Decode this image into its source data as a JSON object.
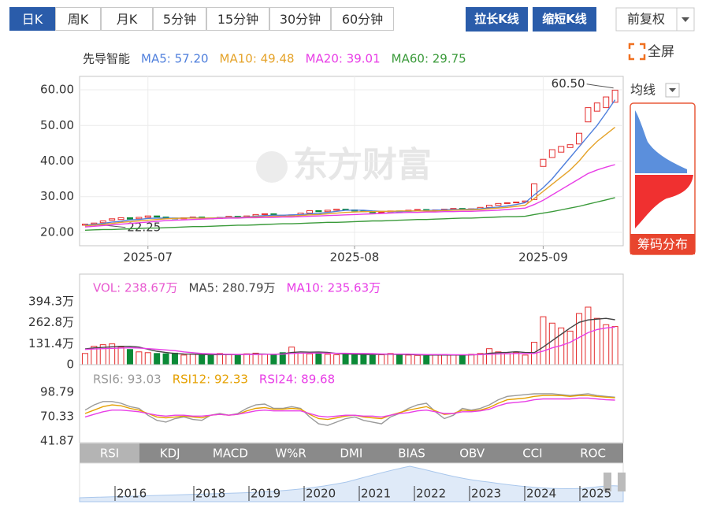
{
  "toolbar": {
    "periods": [
      "日K",
      "周K",
      "月K",
      "5分钟",
      "15分钟",
      "30分钟",
      "60分钟"
    ],
    "buttons": [
      "拉长K线",
      "缩短K线"
    ],
    "adjust": "前复权",
    "fullscreen": "全屏"
  },
  "side": {
    "ma_select": "均线",
    "chip": "筹码分布"
  },
  "watermark": "东方财富",
  "chart_data": [
    {
      "type": "candlestick",
      "title": "先导智能",
      "legend_color": "#333333",
      "xlim": [
        -0.61,
        59.91
      ],
      "ylim": [
        16.24,
        63.76
      ],
      "grid": true,
      "xticks": [
        {
          "value": 7,
          "label": "2025-07"
        },
        {
          "value": 30,
          "label": "2025-08"
        },
        {
          "value": 51,
          "label": "2025-09"
        }
      ],
      "yticks": [
        {
          "value": 20,
          "label": "20.00"
        },
        {
          "value": 30,
          "label": "30.00"
        },
        {
          "value": 40,
          "label": "40.00"
        },
        {
          "value": 50,
          "label": "50.00"
        },
        {
          "value": 60,
          "label": "60.00"
        }
      ],
      "candles": {
        "up_color": "#e42d2d",
        "down_color": "#0b8a37",
        "open": [
          22.0,
          22.3,
          22.7,
          23.4,
          23.6,
          24.1,
          23.8,
          24.2,
          24.6,
          24.3,
          24.0,
          23.8,
          24.1,
          24.3,
          24.0,
          23.9,
          24.2,
          24.5,
          24.3,
          24.6,
          25.0,
          25.2,
          24.8,
          24.6,
          24.9,
          25.4,
          26.1,
          25.8,
          26.2,
          26.5,
          26.3,
          26.0,
          25.8,
          25.5,
          25.7,
          26.0,
          25.9,
          26.2,
          26.4,
          26.1,
          26.3,
          26.5,
          26.7,
          26.4,
          26.6,
          27.0,
          27.6,
          28.1,
          28.3,
          28.5,
          29.2,
          38.5,
          41.0,
          42.5,
          43.8,
          44.8,
          51.0,
          54.0,
          55.0,
          56.5
        ],
        "close": [
          22.3,
          22.6,
          23.2,
          23.8,
          24.1,
          23.7,
          24.2,
          24.6,
          24.3,
          24.0,
          23.8,
          24.1,
          24.3,
          24.0,
          23.9,
          24.2,
          24.5,
          24.3,
          24.6,
          25.0,
          25.2,
          24.8,
          24.6,
          24.9,
          25.4,
          26.1,
          25.8,
          26.2,
          26.5,
          26.3,
          26.0,
          25.8,
          25.5,
          25.7,
          26.0,
          25.9,
          26.2,
          26.4,
          26.1,
          26.3,
          26.5,
          26.7,
          26.4,
          26.6,
          27.0,
          27.6,
          28.1,
          28.3,
          28.5,
          28.8,
          33.6,
          40.5,
          43.2,
          44.1,
          44.6,
          47.8,
          55.0,
          56.3,
          58.0,
          59.9
        ]
      },
      "annotations": [
        {
          "x": 59,
          "value": 60.5,
          "label": "60.50"
        },
        {
          "x": 1,
          "value": 22.25,
          "label": "22.25"
        }
      ],
      "series": [
        {
          "name": "MA5: 57.20",
          "color": "#4f7fdc",
          "values": [
            22.0,
            22.2,
            22.5,
            22.9,
            23.1,
            23.5,
            23.6,
            23.9,
            24.0,
            24.0,
            24.0,
            24.0,
            24.1,
            24.0,
            24.0,
            24.1,
            24.2,
            24.2,
            24.3,
            24.5,
            24.7,
            24.8,
            24.8,
            24.9,
            25.0,
            25.2,
            25.3,
            25.6,
            25.9,
            26.2,
            26.2,
            26.2,
            26.0,
            25.9,
            25.8,
            25.8,
            25.9,
            26.0,
            26.1,
            26.2,
            26.3,
            26.4,
            26.4,
            26.5,
            26.6,
            26.9,
            27.1,
            27.4,
            27.8,
            28.3,
            30.5,
            32.5,
            35,
            38,
            41,
            44,
            47,
            50,
            53.5,
            57.2
          ]
        },
        {
          "name": "MA10: 49.48",
          "color": "#e5a32a",
          "values": [
            21.8,
            22.0,
            22.2,
            22.5,
            22.8,
            23.0,
            23.2,
            23.4,
            23.6,
            23.8,
            23.9,
            24.0,
            24.0,
            24.0,
            24.0,
            24.0,
            24.1,
            24.1,
            24.2,
            24.3,
            24.4,
            24.5,
            24.5,
            24.6,
            24.7,
            24.9,
            25.0,
            25.2,
            25.4,
            25.6,
            25.7,
            25.8,
            25.8,
            25.9,
            25.9,
            26.0,
            26.0,
            26.0,
            26.0,
            26.0,
            26.1,
            26.2,
            26.3,
            26.3,
            26.4,
            26.6,
            26.8,
            27.0,
            27.3,
            27.6,
            29.5,
            31.5,
            33.5,
            35.5,
            37.5,
            40,
            43,
            45.5,
            47.5,
            49.48
          ]
        },
        {
          "name": "MA20: 39.01",
          "color": "#e83ee6",
          "values": [
            21.5,
            21.7,
            21.9,
            22.1,
            22.3,
            22.5,
            22.7,
            22.9,
            23.1,
            23.3,
            23.4,
            23.5,
            23.6,
            23.7,
            23.8,
            23.9,
            24.0,
            24.0,
            24.1,
            24.1,
            24.2,
            24.2,
            24.3,
            24.3,
            24.4,
            24.5,
            24.6,
            24.7,
            24.8,
            24.9,
            25.0,
            25.1,
            25.2,
            25.3,
            25.4,
            25.5,
            25.6,
            25.6,
            25.7,
            25.7,
            25.8,
            25.8,
            25.9,
            25.9,
            26.0,
            26.1,
            26.2,
            26.4,
            26.6,
            26.8,
            27.8,
            29,
            30.5,
            32,
            33.5,
            35,
            36.5,
            37.5,
            38.3,
            39.01
          ]
        },
        {
          "name": "MA60: 29.75",
          "color": "#3a9a3a",
          "values": [
            20.6,
            20.7,
            20.8,
            20.8,
            20.9,
            21.0,
            21.1,
            21.2,
            21.2,
            21.3,
            21.4,
            21.5,
            21.6,
            21.6,
            21.7,
            21.8,
            21.9,
            22.0,
            22.0,
            22.1,
            22.2,
            22.3,
            22.4,
            22.4,
            22.5,
            22.6,
            22.7,
            22.8,
            22.8,
            22.9,
            23.0,
            23.1,
            23.2,
            23.2,
            23.3,
            23.4,
            23.5,
            23.6,
            23.6,
            23.7,
            23.8,
            23.9,
            24.0,
            24.0,
            24.1,
            24.2,
            24.3,
            24.4,
            24.4,
            24.5,
            25.0,
            25.4,
            25.8,
            26.3,
            26.8,
            27.3,
            27.9,
            28.5,
            29.1,
            29.75
          ]
        }
      ]
    },
    {
      "type": "volume",
      "title": "VOL: 238.67万",
      "legend_color": "#e85ad0",
      "xlim": [
        -0.61,
        59.91
      ],
      "ylim": [
        0,
        567
      ],
      "grid": false,
      "yticks": [
        0,
        {
          "value": 131.4,
          "label": "131.4万"
        },
        {
          "value": 262.8,
          "label": "262.8万"
        },
        {
          "value": 394.3,
          "label": "394.3万"
        }
      ],
      "values": [
        70,
        115,
        125,
        130,
        110,
        95,
        80,
        75,
        70,
        68,
        72,
        60,
        65,
        62,
        58,
        70,
        65,
        60,
        68,
        72,
        66,
        60,
        75,
        110,
        72,
        68,
        70,
        65,
        62,
        70,
        60,
        65,
        58,
        62,
        70,
        66,
        60,
        58,
        55,
        62,
        64,
        60,
        58,
        65,
        70,
        100,
        80,
        70,
        75,
        60,
        140,
        300,
        260,
        230,
        210,
        320,
        360,
        290,
        250,
        238.67
      ],
      "series": [
        {
          "name": "MA5: 280.79万",
          "color": "#444444",
          "values": [
            98,
            105,
            108,
            112,
            115,
            115,
            110,
            96,
            84,
            76,
            70,
            67,
            66,
            63,
            63,
            63,
            63,
            63,
            65,
            67,
            66,
            64,
            68,
            76,
            80,
            78,
            79,
            77,
            70,
            67,
            65,
            64,
            63,
            65,
            65,
            64,
            64,
            62,
            60,
            60,
            60,
            60,
            60,
            61,
            63,
            71,
            75,
            77,
            81,
            76,
            75,
            110,
            150,
            190,
            230,
            265,
            280,
            285,
            290,
            280.79
          ]
        },
        {
          "name": "MA10: 235.63万",
          "color": "#e83ee6",
          "values": [
            95,
            98,
            100,
            102,
            104,
            106,
            104,
            100,
            96,
            92,
            88,
            80,
            75,
            70,
            68,
            66,
            65,
            64,
            64,
            64,
            65,
            65,
            66,
            70,
            72,
            72,
            73,
            72,
            71,
            71,
            70,
            70,
            69,
            67,
            66,
            66,
            66,
            64,
            63,
            63,
            63,
            62,
            62,
            62,
            63,
            65,
            67,
            68,
            70,
            70,
            70,
            85,
            105,
            120,
            140,
            170,
            200,
            220,
            230,
            235.63
          ]
        }
      ]
    },
    {
      "type": "line",
      "xlim": [
        -0.61,
        59.91
      ],
      "ylim": [
        40,
        131
      ],
      "grid": false,
      "yticks": [
        41.87,
        70.33,
        98.79
      ],
      "series": [
        {
          "name": "RSI6: 93.03",
          "color": "#9a9a9a",
          "values": [
            78,
            84,
            88,
            88,
            86,
            82,
            80,
            72,
            66,
            64,
            68,
            70,
            67,
            66,
            72,
            74,
            72,
            74,
            80,
            84,
            85,
            80,
            80,
            82,
            80,
            70,
            62,
            60,
            64,
            68,
            70,
            66,
            64,
            62,
            70,
            74,
            80,
            84,
            86,
            76,
            68,
            72,
            80,
            78,
            80,
            84,
            90,
            94,
            95,
            96,
            97,
            97,
            97,
            96,
            95,
            96,
            97,
            95,
            94,
            93.03
          ]
        },
        {
          "name": "RSI12: 92.33",
          "color": "#e5a000",
          "values": [
            74,
            78,
            82,
            84,
            83,
            80,
            78,
            74,
            70,
            69,
            70,
            71,
            70,
            69,
            72,
            73,
            72,
            73,
            77,
            80,
            81,
            79,
            79,
            80,
            79,
            73,
            68,
            67,
            69,
            71,
            72,
            70,
            69,
            68,
            72,
            75,
            78,
            80,
            82,
            77,
            73,
            74,
            78,
            77,
            78,
            81,
            86,
            90,
            91,
            92,
            94,
            95,
            95,
            95,
            94,
            95,
            95,
            94,
            93,
            92.33
          ]
        },
        {
          "name": "RSI24: 89.68",
          "color": "#e83ee6",
          "values": [
            70,
            73,
            76,
            78,
            78,
            77,
            76,
            74,
            72,
            71,
            72,
            72,
            71,
            71,
            72,
            73,
            72,
            73,
            75,
            77,
            78,
            77,
            77,
            77,
            77,
            74,
            71,
            70,
            71,
            72,
            72,
            71,
            71,
            70,
            72,
            74,
            75,
            77,
            78,
            76,
            74,
            74,
            76,
            76,
            77,
            79,
            83,
            86,
            87,
            88,
            90,
            91,
            91,
            91,
            91,
            92,
            92,
            91,
            90,
            89.68
          ]
        }
      ]
    }
  ],
  "indicator_tabs": [
    "RSI",
    "KDJ",
    "MACD",
    "W%R",
    "DMI",
    "BIAS",
    "OBV",
    "CCI",
    "ROC"
  ],
  "navigator": {
    "years": [
      "2016",
      "2018",
      "2019",
      "2020",
      "2021",
      "2022",
      "2023",
      "2024",
      "2025"
    ]
  }
}
